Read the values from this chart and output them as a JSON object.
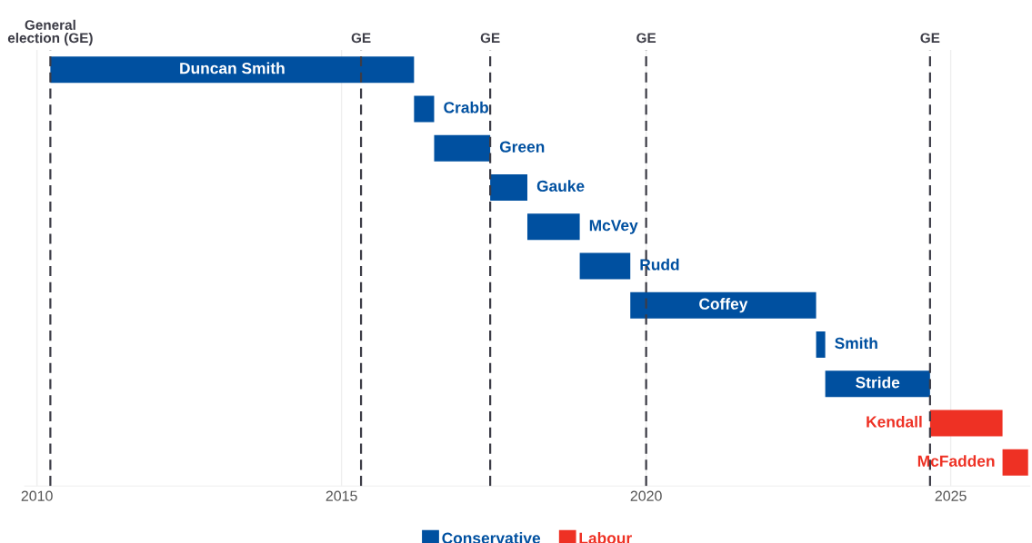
{
  "chart_data": {
    "type": "bar",
    "orientation": "horizontal",
    "categories": [
      "Duncan Smith",
      "Crabb",
      "Green",
      "Gauke",
      "McVey",
      "Rudd",
      "Coffey",
      "Smith",
      "Stride",
      "Kendall",
      "McFadden"
    ],
    "series": [
      {
        "name": "Conservative",
        "color": "#0050a0",
        "base": [
          2010.22,
          2016.19,
          2016.52,
          2017.44,
          2018.05,
          2018.91,
          2019.74,
          2022.79,
          2022.94,
          null,
          null
        ],
        "values": [
          5.97,
          0.33,
          0.92,
          0.61,
          0.86,
          0.83,
          3.05,
          0.15,
          1.72,
          null,
          null
        ]
      },
      {
        "name": "Labour",
        "color": "#ee3124",
        "base": [
          null,
          null,
          null,
          null,
          null,
          null,
          null,
          null,
          null,
          2024.66,
          2025.85
        ],
        "values": [
          null,
          null,
          null,
          null,
          null,
          null,
          null,
          null,
          null,
          1.19,
          0.42
        ]
      }
    ],
    "xlim": [
      2009.8,
      2026.3
    ],
    "xticks": [
      2010,
      2015,
      2020,
      2025
    ],
    "ref_lines": [
      {
        "axis": "x",
        "value": 2010.22,
        "label": "General\nelection (GE)",
        "color": "#3c3c46",
        "line_style": "dashed"
      },
      {
        "axis": "x",
        "value": 2015.32,
        "label": "GE",
        "color": "#3c3c46",
        "line_style": "dashed"
      },
      {
        "axis": "x",
        "value": 2017.44,
        "label": "GE",
        "color": "#3c3c46",
        "line_style": "dashed"
      },
      {
        "axis": "x",
        "value": 2020.0,
        "label": "GE",
        "color": "#3c3c46",
        "line_style": "dashed"
      },
      {
        "axis": "x",
        "value": 2024.66,
        "label": "GE",
        "color": "#3c3c46",
        "line_style": "dashed"
      }
    ],
    "grid": "x",
    "legend": "bottom",
    "tick_labels": "x"
  }
}
